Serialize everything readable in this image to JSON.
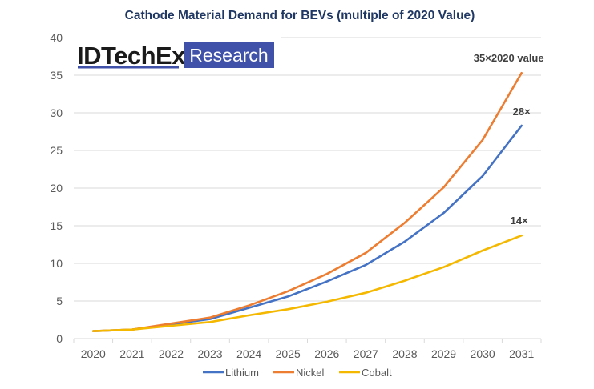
{
  "logo": {
    "brand": "IDTechEx",
    "badge": "Research",
    "brand_color": "#1a1a1a",
    "underline_color": "#3f51a8",
    "badge_color": "#3f51a8"
  },
  "chart_data": {
    "type": "line",
    "title": "Cathode Material Demand for BEVs (multiple of 2020 Value)",
    "xlabel": "",
    "ylabel": "",
    "categories": [
      "2020",
      "2021",
      "2022",
      "2023",
      "2024",
      "2025",
      "2026",
      "2027",
      "2028",
      "2029",
      "2030",
      "2031"
    ],
    "ylim": [
      0,
      40
    ],
    "yticks": [
      0,
      5,
      10,
      15,
      20,
      25,
      30,
      35,
      40
    ],
    "grid": true,
    "legend": "bottom",
    "series": [
      {
        "name": "Lithium",
        "color": "#4472c4",
        "values": [
          1.0,
          1.2,
          1.9,
          2.6,
          4.1,
          5.6,
          7.6,
          9.8,
          12.9,
          16.7,
          21.6,
          28.3
        ]
      },
      {
        "name": "Nickel",
        "color": "#ed7d31",
        "values": [
          1.0,
          1.2,
          2.0,
          2.8,
          4.4,
          6.3,
          8.6,
          11.4,
          15.4,
          20.1,
          26.4,
          35.3
        ]
      },
      {
        "name": "Cobalt",
        "color": "#f5b800",
        "values": [
          1.0,
          1.2,
          1.7,
          2.2,
          3.1,
          3.9,
          4.9,
          6.1,
          7.7,
          9.5,
          11.7,
          13.7
        ]
      }
    ],
    "annotations": [
      {
        "text": "35×2020 value",
        "series": "Nickel",
        "category": "2031"
      },
      {
        "text": "28×",
        "series": "Lithium",
        "category": "2031"
      },
      {
        "text": "14×",
        "series": "Cobalt",
        "category": "2031"
      }
    ]
  }
}
